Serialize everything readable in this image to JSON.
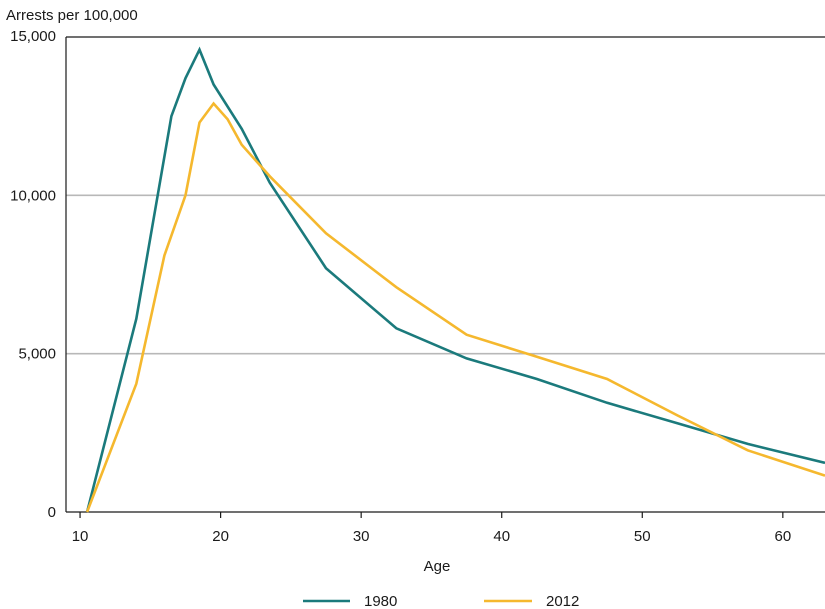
{
  "chart_data": {
    "type": "line",
    "title": "",
    "ylabel": "Arrests per 100,000",
    "xlabel": "Age",
    "xlim": [
      9,
      63
    ],
    "ylim": [
      0,
      15000
    ],
    "x_ticks": [
      10,
      20,
      30,
      40,
      50,
      60
    ],
    "x_tick_labels": [
      "10",
      "20",
      "30",
      "40",
      "50",
      "60"
    ],
    "y_ticks": [
      0,
      5000,
      10000,
      15000
    ],
    "y_tick_labels": [
      "0",
      "5,000",
      "10,000",
      "15,000"
    ],
    "grid": "horizontal",
    "legend_position": "bottom",
    "series": [
      {
        "name": "1980",
        "color": "#1b7a7c",
        "points": [
          [
            10.5,
            0
          ],
          [
            14,
            6100
          ],
          [
            16.5,
            12500
          ],
          [
            17.5,
            13700
          ],
          [
            18.5,
            14600
          ],
          [
            19.5,
            13500
          ],
          [
            21.5,
            12100
          ],
          [
            23.5,
            10400
          ],
          [
            27.5,
            7700
          ],
          [
            32.5,
            5800
          ],
          [
            37.5,
            4850
          ],
          [
            42.5,
            4200
          ],
          [
            47.5,
            3450
          ],
          [
            52.5,
            2800
          ],
          [
            57.5,
            2150
          ],
          [
            63,
            1550
          ]
        ]
      },
      {
        "name": "2012",
        "color": "#f5b82e",
        "points": [
          [
            10.5,
            0
          ],
          [
            14,
            4050
          ],
          [
            16,
            8100
          ],
          [
            17.5,
            10000
          ],
          [
            18.5,
            12300
          ],
          [
            19.5,
            12900
          ],
          [
            20.5,
            12400
          ],
          [
            21.5,
            11600
          ],
          [
            23.5,
            10600
          ],
          [
            27.5,
            8800
          ],
          [
            32.5,
            7100
          ],
          [
            37.5,
            5600
          ],
          [
            42.5,
            4900
          ],
          [
            47.5,
            4200
          ],
          [
            52.5,
            3050
          ],
          [
            57.5,
            1950
          ],
          [
            63,
            1150
          ]
        ]
      }
    ]
  }
}
